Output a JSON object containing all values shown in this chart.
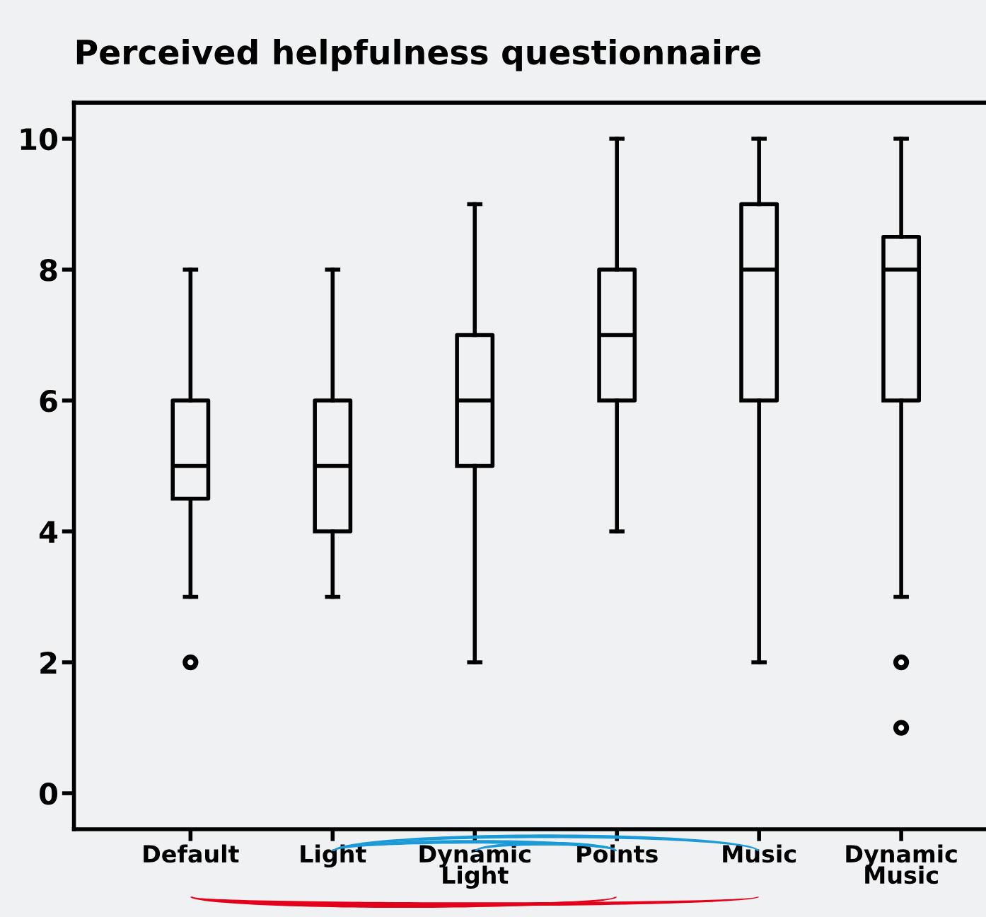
{
  "chart_data": {
    "type": "box",
    "title": "Perceived helpfulness questionnaire",
    "categories": [
      "Default",
      "Light",
      "Dynamic\nLight",
      "Points",
      "Music",
      "Dynamic\nMusic"
    ],
    "boxes": [
      {
        "low": 3,
        "q1": 4.5,
        "median": 5,
        "q3": 6,
        "high": 8,
        "outliers": [
          2
        ]
      },
      {
        "low": 3,
        "q1": 4,
        "median": 5,
        "q3": 6,
        "high": 8
      },
      {
        "low": 2,
        "q1": 5,
        "median": 6,
        "q3": 7,
        "high": 9
      },
      {
        "low": 4,
        "q1": 6,
        "median": 7,
        "q3": 8,
        "high": 10
      },
      {
        "low": 2,
        "q1": 6,
        "median": 8,
        "q3": 9,
        "high": 10
      },
      {
        "low": 3,
        "q1": 6,
        "median": 8,
        "q3": 8.5,
        "high": 10,
        "outliers": [
          2,
          1
        ]
      }
    ],
    "ylim": [
      -0.55,
      10.55
    ],
    "yticks": [
      0,
      2,
      4,
      6,
      8,
      10
    ],
    "grid": false
  }
}
